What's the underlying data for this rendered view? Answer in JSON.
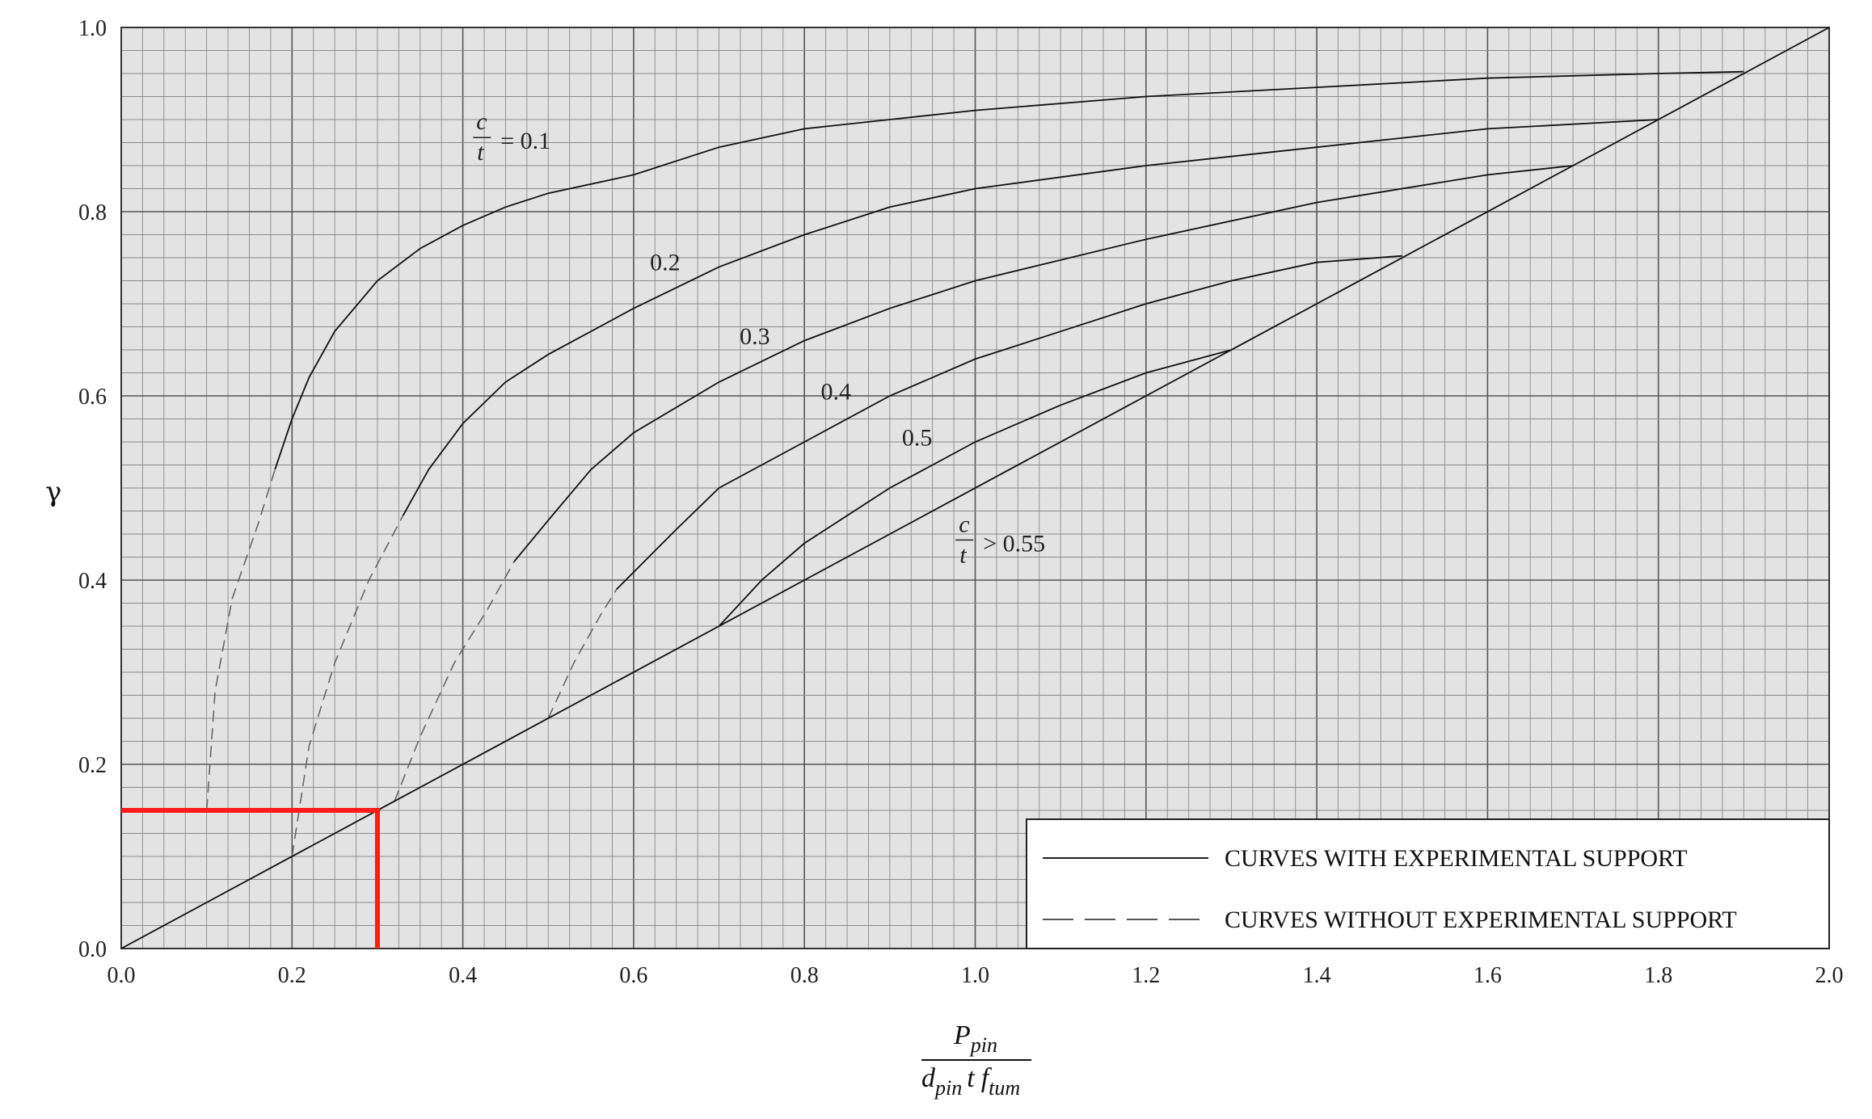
{
  "chart_data": {
    "type": "line",
    "title": "",
    "ylabel": "γ",
    "xlabel": {
      "numerator_main": "P",
      "numerator_sub": "pin",
      "denominator_d": "d",
      "denominator_d_sub": "pin",
      "denominator_t": "t",
      "denominator_f": "f",
      "denominator_f_sub": "tum"
    },
    "xlim": [
      0.0,
      2.0
    ],
    "ylim": [
      0.0,
      1.0
    ],
    "x_ticks": [
      "0.0",
      "0.2",
      "0.4",
      "0.6",
      "0.8",
      "1.0",
      "1.2",
      "1.4",
      "1.6",
      "1.8",
      "2.0"
    ],
    "y_ticks": [
      "0.0",
      "0.2",
      "0.4",
      "0.6",
      "0.8",
      "1.0"
    ],
    "x_tick_values": [
      0.0,
      0.2,
      0.4,
      0.6,
      0.8,
      1.0,
      1.2,
      1.4,
      1.6,
      1.8,
      2.0
    ],
    "y_tick_values": [
      0.0,
      0.2,
      0.4,
      0.6,
      0.8,
      1.0
    ],
    "grid": {
      "minor_step": 0.025,
      "major_step_x": 0.2,
      "major_step_y": 0.2,
      "background": "#e3e3e3",
      "minor_color": "#8a8a8a",
      "major_color": "#555555"
    },
    "series": [
      {
        "label_id": "c/t = 0.1",
        "solid": [
          [
            0.18,
            0.52
          ],
          [
            0.2,
            0.575
          ],
          [
            0.22,
            0.62
          ],
          [
            0.25,
            0.67
          ],
          [
            0.3,
            0.725
          ],
          [
            0.35,
            0.76
          ],
          [
            0.4,
            0.785
          ],
          [
            0.45,
            0.805
          ],
          [
            0.5,
            0.82
          ],
          [
            0.6,
            0.84
          ],
          [
            0.7,
            0.87
          ],
          [
            0.8,
            0.89
          ],
          [
            0.9,
            0.9
          ],
          [
            1.0,
            0.91
          ],
          [
            1.2,
            0.925
          ],
          [
            1.4,
            0.935
          ],
          [
            1.6,
            0.945
          ],
          [
            1.8,
            0.95
          ],
          [
            1.9,
            0.952
          ]
        ],
        "dashed": [
          [
            0.1,
            0.15
          ],
          [
            0.11,
            0.28
          ],
          [
            0.13,
            0.38
          ],
          [
            0.16,
            0.46
          ],
          [
            0.18,
            0.52
          ]
        ]
      },
      {
        "label_id": "0.2",
        "solid": [
          [
            0.33,
            0.47
          ],
          [
            0.36,
            0.52
          ],
          [
            0.4,
            0.57
          ],
          [
            0.45,
            0.615
          ],
          [
            0.5,
            0.645
          ],
          [
            0.6,
            0.695
          ],
          [
            0.7,
            0.74
          ],
          [
            0.8,
            0.775
          ],
          [
            0.9,
            0.805
          ],
          [
            1.0,
            0.825
          ],
          [
            1.2,
            0.85
          ],
          [
            1.4,
            0.87
          ],
          [
            1.6,
            0.89
          ],
          [
            1.8,
            0.9
          ]
        ],
        "dashed": [
          [
            0.2,
            0.1
          ],
          [
            0.22,
            0.22
          ],
          [
            0.25,
            0.31
          ],
          [
            0.29,
            0.4
          ],
          [
            0.33,
            0.47
          ]
        ]
      },
      {
        "label_id": "0.3",
        "solid": [
          [
            0.46,
            0.42
          ],
          [
            0.5,
            0.465
          ],
          [
            0.55,
            0.52
          ],
          [
            0.6,
            0.56
          ],
          [
            0.7,
            0.615
          ],
          [
            0.8,
            0.66
          ],
          [
            0.9,
            0.695
          ],
          [
            1.0,
            0.725
          ],
          [
            1.2,
            0.77
          ],
          [
            1.4,
            0.81
          ],
          [
            1.6,
            0.84
          ],
          [
            1.7,
            0.85
          ]
        ],
        "dashed": [
          [
            0.32,
            0.16
          ],
          [
            0.35,
            0.23
          ],
          [
            0.39,
            0.31
          ],
          [
            0.43,
            0.37
          ],
          [
            0.46,
            0.42
          ]
        ]
      },
      {
        "label_id": "0.4",
        "solid": [
          [
            0.58,
            0.39
          ],
          [
            0.65,
            0.455
          ],
          [
            0.7,
            0.5
          ],
          [
            0.8,
            0.55
          ],
          [
            0.9,
            0.6
          ],
          [
            1.0,
            0.64
          ],
          [
            1.1,
            0.67
          ],
          [
            1.2,
            0.7
          ],
          [
            1.3,
            0.725
          ],
          [
            1.4,
            0.745
          ],
          [
            1.5,
            0.752
          ]
        ],
        "dashed": [
          [
            0.5,
            0.25
          ],
          [
            0.53,
            0.31
          ],
          [
            0.56,
            0.36
          ],
          [
            0.58,
            0.39
          ]
        ]
      },
      {
        "label_id": "0.5",
        "solid": [
          [
            0.7,
            0.35
          ],
          [
            0.75,
            0.4
          ],
          [
            0.8,
            0.44
          ],
          [
            0.9,
            0.5
          ],
          [
            1.0,
            0.55
          ],
          [
            1.1,
            0.59
          ],
          [
            1.2,
            0.625
          ],
          [
            1.3,
            0.65
          ]
        ]
      },
      {
        "label_id": "c/t > 0.55",
        "solid": [
          [
            0.0,
            0.0
          ],
          [
            2.0,
            1.0
          ]
        ]
      }
    ],
    "curve_labels": [
      {
        "text": "= 0.1",
        "frac": {
          "num": "c",
          "den": "t"
        },
        "x": 0.465,
        "y": 0.877
      },
      {
        "text": "0.2",
        "x": 0.64,
        "y": 0.745
      },
      {
        "text": "0.3",
        "x": 0.745,
        "y": 0.665
      },
      {
        "text": "0.4",
        "x": 0.84,
        "y": 0.605
      },
      {
        "text": "0.5",
        "x": 0.935,
        "y": 0.555
      },
      {
        "text": "> 0.55",
        "frac": {
          "num": "c",
          "den": "t"
        },
        "x": 1.03,
        "y": 0.44
      }
    ],
    "annotation": {
      "color": "#ff1a1a",
      "example_point": {
        "x": 0.3,
        "y": 0.15
      }
    },
    "legend": {
      "position": "bottom-right",
      "entries": [
        {
          "text": "CURVES WITH EXPERIMENTAL SUPPORT",
          "style": "solid"
        },
        {
          "text": "CURVES WITHOUT EXPERIMENTAL SUPPORT",
          "style": "dashed"
        }
      ]
    }
  }
}
